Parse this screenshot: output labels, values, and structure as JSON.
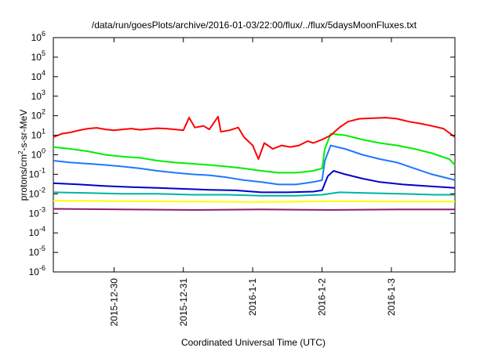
{
  "chart_data": {
    "type": "line",
    "title": "/data/run/goesPlots/archive/2016-01-03/22:00/flux/../flux/5daysMoonFluxes.txt",
    "xlabel": "Coordinated Universal Time (UTC)",
    "ylabel": {
      "prefix": "protons/cm",
      "superscript": "2",
      "suffix": "-s-sr-MeV"
    },
    "y_scale": "log",
    "ylim": [
      1e-06,
      1000000.0
    ],
    "y_ticks": [
      {
        "value": 1e-06,
        "base": "10",
        "exp": "-6"
      },
      {
        "value": 1e-05,
        "base": "10",
        "exp": "-5"
      },
      {
        "value": 0.0001,
        "base": "10",
        "exp": "-4"
      },
      {
        "value": 0.001,
        "base": "10",
        "exp": "-3"
      },
      {
        "value": 0.01,
        "base": "10",
        "exp": "-2"
      },
      {
        "value": 0.1,
        "base": "10",
        "exp": "-1"
      },
      {
        "value": 1,
        "base": "10",
        "exp": "0"
      },
      {
        "value": 10.0,
        "base": "10",
        "exp": "1"
      },
      {
        "value": 100.0,
        "base": "10",
        "exp": "2"
      },
      {
        "value": 1000.0,
        "base": "10",
        "exp": "3"
      },
      {
        "value": 10000.0,
        "base": "10",
        "exp": "4"
      },
      {
        "value": 100000.0,
        "base": "10",
        "exp": "5"
      },
      {
        "value": 1000000.0,
        "base": "10",
        "exp": "6"
      }
    ],
    "xlim": [
      "2015-12-29T03:00",
      "2016-01-03T22:00"
    ],
    "x_ticks": [
      {
        "value": "2015-12-30T00:00",
        "label": "2015-12-30"
      },
      {
        "value": "2015-12-31T00:00",
        "label": "2015-12-31"
      },
      {
        "value": "2016-01-01T00:00",
        "label": "2016-1-1"
      },
      {
        "value": "2016-01-02T00:00",
        "label": "2016-1-2"
      },
      {
        "value": "2016-01-03T00:00",
        "label": "2016-1-3"
      }
    ],
    "grid": false,
    "legend": "none",
    "series": [
      {
        "color": "#ff0000",
        "points": [
          [
            "2015-12-29T03:00",
            8
          ],
          [
            "2015-12-29T06:00",
            12
          ],
          [
            "2015-12-29T09:00",
            14
          ],
          [
            "2015-12-29T12:00",
            18
          ],
          [
            "2015-12-29T15:00",
            22
          ],
          [
            "2015-12-29T18:00",
            24
          ],
          [
            "2015-12-29T21:00",
            20
          ],
          [
            "2015-12-30T00:00",
            18
          ],
          [
            "2015-12-30T03:00",
            20
          ],
          [
            "2015-12-30T06:00",
            22
          ],
          [
            "2015-12-30T09:00",
            19
          ],
          [
            "2015-12-30T12:00",
            21
          ],
          [
            "2015-12-30T15:00",
            23
          ],
          [
            "2015-12-30T18:00",
            22
          ],
          [
            "2015-12-30T21:00",
            20
          ],
          [
            "2015-12-31T00:00",
            18
          ],
          [
            "2015-12-31T02:00",
            80
          ],
          [
            "2015-12-31T04:00",
            25
          ],
          [
            "2015-12-31T07:00",
            30
          ],
          [
            "2015-12-31T09:00",
            20
          ],
          [
            "2015-12-31T12:00",
            90
          ],
          [
            "2015-12-31T13:00",
            15
          ],
          [
            "2015-12-31T16:00",
            18
          ],
          [
            "2015-12-31T19:00",
            25
          ],
          [
            "2015-12-31T21:00",
            8
          ],
          [
            "2016-01-01T00:00",
            3
          ],
          [
            "2016-01-01T02:00",
            0.6
          ],
          [
            "2016-01-01T04:00",
            4
          ],
          [
            "2016-01-01T07:00",
            2
          ],
          [
            "2016-01-01T10:00",
            3
          ],
          [
            "2016-01-01T13:00",
            2.5
          ],
          [
            "2016-01-01T16:00",
            3
          ],
          [
            "2016-01-01T19:00",
            5
          ],
          [
            "2016-01-01T21:00",
            4
          ],
          [
            "2016-01-02T00:00",
            6
          ],
          [
            "2016-01-02T03:00",
            10
          ],
          [
            "2016-01-02T06:00",
            25
          ],
          [
            "2016-01-02T09:00",
            50
          ],
          [
            "2016-01-02T13:00",
            70
          ],
          [
            "2016-01-02T18:00",
            75
          ],
          [
            "2016-01-02T22:00",
            80
          ],
          [
            "2016-01-03T02:00",
            70
          ],
          [
            "2016-01-03T06:00",
            50
          ],
          [
            "2016-01-03T10:00",
            40
          ],
          [
            "2016-01-03T14:00",
            30
          ],
          [
            "2016-01-03T18:00",
            22
          ],
          [
            "2016-01-03T22:00",
            8
          ]
        ]
      },
      {
        "color": "#00ee00",
        "points": [
          [
            "2015-12-29T03:00",
            2.5
          ],
          [
            "2015-12-29T09:00",
            2
          ],
          [
            "2015-12-29T15:00",
            1.5
          ],
          [
            "2015-12-29T21:00",
            1
          ],
          [
            "2015-12-30T03:00",
            0.8
          ],
          [
            "2015-12-30T09:00",
            0.7
          ],
          [
            "2015-12-30T15:00",
            0.5
          ],
          [
            "2015-12-30T21:00",
            0.4
          ],
          [
            "2015-12-31T03:00",
            0.35
          ],
          [
            "2015-12-31T09:00",
            0.3
          ],
          [
            "2015-12-31T15:00",
            0.25
          ],
          [
            "2015-12-31T21:00",
            0.2
          ],
          [
            "2016-01-01T03:00",
            0.15
          ],
          [
            "2016-01-01T09:00",
            0.12
          ],
          [
            "2016-01-01T15:00",
            0.12
          ],
          [
            "2016-01-01T21:00",
            0.15
          ],
          [
            "2016-01-02T00:00",
            0.2
          ],
          [
            "2016-01-02T01:00",
            2
          ],
          [
            "2016-01-02T03:00",
            12
          ],
          [
            "2016-01-02T08:00",
            10
          ],
          [
            "2016-01-02T14:00",
            6
          ],
          [
            "2016-01-02T20:00",
            4
          ],
          [
            "2016-01-03T02:00",
            3
          ],
          [
            "2016-01-03T08:00",
            2
          ],
          [
            "2016-01-03T14:00",
            1.2
          ],
          [
            "2016-01-03T20:00",
            0.6
          ],
          [
            "2016-01-03T22:00",
            0.3
          ]
        ]
      },
      {
        "color": "#1e78ff",
        "points": [
          [
            "2015-12-29T03:00",
            0.5
          ],
          [
            "2015-12-29T09:00",
            0.4
          ],
          [
            "2015-12-29T15:00",
            0.35
          ],
          [
            "2015-12-29T21:00",
            0.3
          ],
          [
            "2015-12-30T03:00",
            0.25
          ],
          [
            "2015-12-30T09:00",
            0.2
          ],
          [
            "2015-12-30T15:00",
            0.15
          ],
          [
            "2015-12-30T21:00",
            0.12
          ],
          [
            "2015-12-31T03:00",
            0.1
          ],
          [
            "2015-12-31T09:00",
            0.09
          ],
          [
            "2015-12-31T15:00",
            0.07
          ],
          [
            "2015-12-31T21:00",
            0.05
          ],
          [
            "2016-01-01T03:00",
            0.04
          ],
          [
            "2016-01-01T09:00",
            0.03
          ],
          [
            "2016-01-01T15:00",
            0.03
          ],
          [
            "2016-01-01T21:00",
            0.04
          ],
          [
            "2016-01-02T00:00",
            0.05
          ],
          [
            "2016-01-02T01:00",
            0.5
          ],
          [
            "2016-01-02T03:00",
            3
          ],
          [
            "2016-01-02T08:00",
            2
          ],
          [
            "2016-01-02T14:00",
            1
          ],
          [
            "2016-01-02T20:00",
            0.6
          ],
          [
            "2016-01-03T02:00",
            0.4
          ],
          [
            "2016-01-03T08:00",
            0.2
          ],
          [
            "2016-01-03T14:00",
            0.1
          ],
          [
            "2016-01-03T20:00",
            0.06
          ],
          [
            "2016-01-03T22:00",
            0.05
          ]
        ]
      },
      {
        "color": "#0000cc",
        "points": [
          [
            "2015-12-29T03:00",
            0.035
          ],
          [
            "2015-12-29T12:00",
            0.03
          ],
          [
            "2015-12-29T21:00",
            0.025
          ],
          [
            "2015-12-30T06:00",
            0.022
          ],
          [
            "2015-12-30T15:00",
            0.02
          ],
          [
            "2015-12-31T00:00",
            0.018
          ],
          [
            "2015-12-31T09:00",
            0.016
          ],
          [
            "2015-12-31T18:00",
            0.015
          ],
          [
            "2016-01-01T03:00",
            0.012
          ],
          [
            "2016-01-01T12:00",
            0.012
          ],
          [
            "2016-01-01T21:00",
            0.013
          ],
          [
            "2016-01-02T00:00",
            0.015
          ],
          [
            "2016-01-02T02:00",
            0.08
          ],
          [
            "2016-01-02T04:00",
            0.15
          ],
          [
            "2016-01-02T08:00",
            0.1
          ],
          [
            "2016-01-02T14:00",
            0.06
          ],
          [
            "2016-01-02T20:00",
            0.04
          ],
          [
            "2016-01-03T04:00",
            0.03
          ],
          [
            "2016-01-03T12:00",
            0.025
          ],
          [
            "2016-01-03T22:00",
            0.02
          ]
        ]
      },
      {
        "color": "#00b4a0",
        "points": [
          [
            "2015-12-29T03:00",
            0.012
          ],
          [
            "2015-12-29T15:00",
            0.011
          ],
          [
            "2015-12-30T03:00",
            0.01
          ],
          [
            "2015-12-30T15:00",
            0.01
          ],
          [
            "2015-12-31T03:00",
            0.009
          ],
          [
            "2015-12-31T15:00",
            0.009
          ],
          [
            "2016-01-01T03:00",
            0.008
          ],
          [
            "2016-01-01T15:00",
            0.008
          ],
          [
            "2016-01-02T00:00",
            0.009
          ],
          [
            "2016-01-02T06:00",
            0.012
          ],
          [
            "2016-01-02T15:00",
            0.011
          ],
          [
            "2016-01-03T03:00",
            0.01
          ],
          [
            "2016-01-03T15:00",
            0.009
          ],
          [
            "2016-01-03T22:00",
            0.009
          ]
        ]
      },
      {
        "color": "#ffff00",
        "points": [
          [
            "2015-12-29T03:00",
            0.0045
          ],
          [
            "2015-12-30T03:00",
            0.0042
          ],
          [
            "2015-12-31T03:00",
            0.004
          ],
          [
            "2016-01-01T03:00",
            0.0038
          ],
          [
            "2016-01-02T03:00",
            0.0042
          ],
          [
            "2016-01-03T03:00",
            0.004
          ],
          [
            "2016-01-03T22:00",
            0.004
          ]
        ]
      },
      {
        "color": "#8b1a6b",
        "points": [
          [
            "2015-12-29T03:00",
            0.0017
          ],
          [
            "2015-12-30T03:00",
            0.0016
          ],
          [
            "2015-12-31T03:00",
            0.0015
          ],
          [
            "2016-01-01T03:00",
            0.0016
          ],
          [
            "2016-01-02T03:00",
            0.0015
          ],
          [
            "2016-01-03T03:00",
            0.0016
          ],
          [
            "2016-01-03T22:00",
            0.0016
          ]
        ]
      }
    ]
  }
}
